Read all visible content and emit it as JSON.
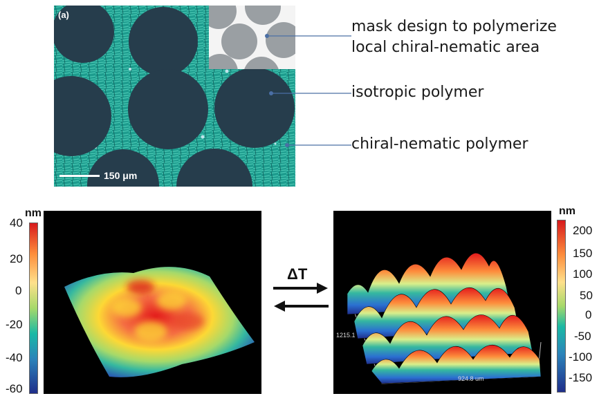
{
  "micrograph": {
    "panel_label": "(a)",
    "scale_bar": "150 μm"
  },
  "callouts": [
    {
      "lines": [
        "mask design to polymerize",
        "local chiral-nematic area"
      ]
    },
    {
      "lines": [
        "isotropic polymer"
      ]
    },
    {
      "lines": [
        "chiral-nematic polymer"
      ]
    }
  ],
  "left_plot": {
    "unit": "nm",
    "ticks": [
      "40",
      "20",
      "0",
      "-20",
      "-40",
      "-60"
    ]
  },
  "right_plot": {
    "unit": "nm",
    "ticks": [
      "200",
      "150",
      "100",
      "50",
      "0",
      "-50",
      "-100",
      "-150"
    ],
    "dim_y": "1215.1",
    "dim_x": "924.8 um"
  },
  "arrows": {
    "label": "ΔT"
  },
  "colors": {
    "micrograph_bg": "#1fa595",
    "circle": "#263d4c",
    "plot_bg": "#000000"
  }
}
